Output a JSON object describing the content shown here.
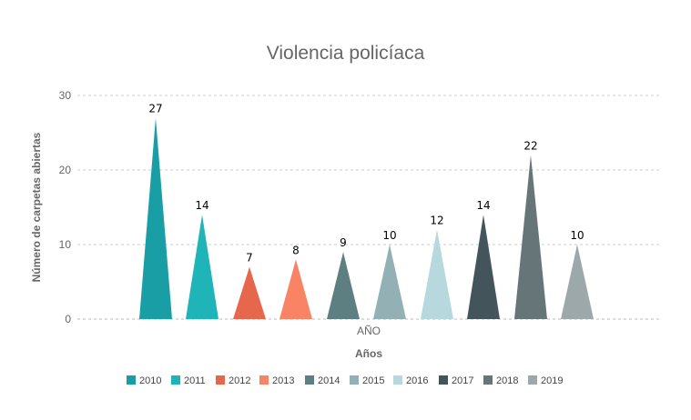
{
  "chart_data": {
    "type": "bar",
    "bar_shape": "triangle",
    "title": "Violencia policíaca",
    "xlabel": "Años",
    "ylabel": "Número de carpetas abiertas",
    "categories": [
      "AÑO"
    ],
    "yticks": [
      0,
      10,
      20,
      30
    ],
    "ylim": [
      0,
      30
    ],
    "grid": true,
    "legend_position": "bottom",
    "series": [
      {
        "name": "2010",
        "values": [
          27
        ],
        "color": "#1a9ea6"
      },
      {
        "name": "2011",
        "values": [
          14
        ],
        "color": "#1fb5b8"
      },
      {
        "name": "2012",
        "values": [
          7
        ],
        "color": "#e6674c"
      },
      {
        "name": "2013",
        "values": [
          8
        ],
        "color": "#f98465"
      },
      {
        "name": "2014",
        "values": [
          9
        ],
        "color": "#5e7f82"
      },
      {
        "name": "2015",
        "values": [
          10
        ],
        "color": "#93b0b5"
      },
      {
        "name": "2016",
        "values": [
          12
        ],
        "color": "#b7d8dc"
      },
      {
        "name": "2017",
        "values": [
          14
        ],
        "color": "#44545b"
      },
      {
        "name": "2018",
        "values": [
          22
        ],
        "color": "#667577"
      },
      {
        "name": "2019",
        "values": [
          10
        ],
        "color": "#9ca8aa"
      }
    ]
  }
}
